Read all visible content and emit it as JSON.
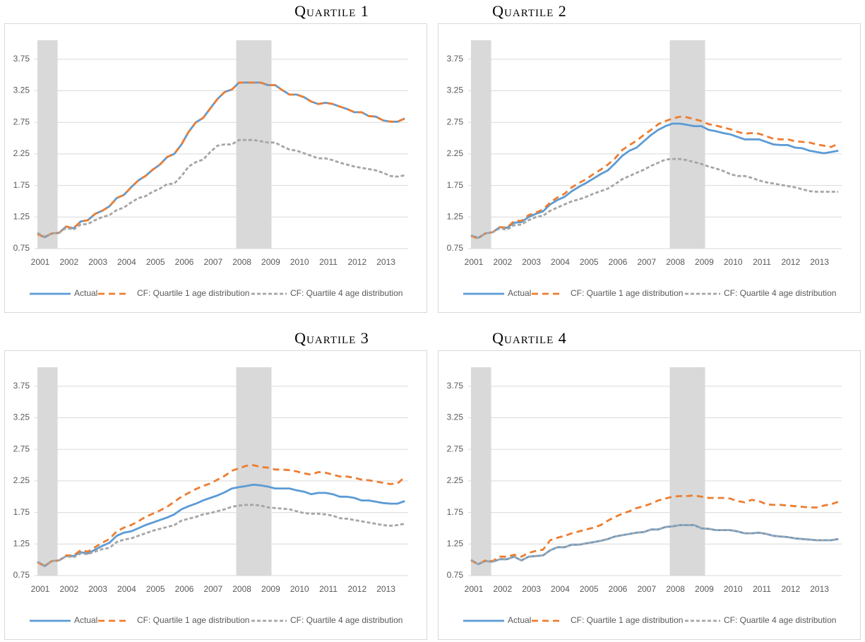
{
  "chart_data": [
    {
      "type": "line",
      "title": "Quartile 1",
      "categories": [
        "2001",
        null,
        null,
        null,
        "2002",
        null,
        null,
        null,
        "2003",
        null,
        null,
        null,
        "2004",
        null,
        null,
        null,
        "2005",
        null,
        null,
        null,
        "2006",
        null,
        null,
        null,
        "2007",
        null,
        null,
        null,
        "2008",
        null,
        null,
        null,
        "2009",
        null,
        null,
        null,
        "2010",
        null,
        null,
        null,
        "2011",
        null,
        null,
        null,
        "2012",
        null,
        null,
        null,
        "2013",
        null,
        null,
        null
      ],
      "series": [
        {
          "name": "Actual",
          "color": "#5b9bd5",
          "dash": "solid",
          "values": [
            0.98,
            0.93,
            0.99,
            1.0,
            1.1,
            1.07,
            1.18,
            1.2,
            1.3,
            1.35,
            1.42,
            1.55,
            1.6,
            1.72,
            1.83,
            1.9,
            2.0,
            2.08,
            2.2,
            2.25,
            2.4,
            2.6,
            2.75,
            2.82,
            2.97,
            3.12,
            3.23,
            3.27,
            3.38,
            3.38,
            3.38,
            3.38,
            3.34,
            3.34,
            3.26,
            3.19,
            3.19,
            3.15,
            3.08,
            3.04,
            3.06,
            3.04,
            3.0,
            2.96,
            2.91,
            2.91,
            2.85,
            2.84,
            2.78,
            2.76,
            2.76,
            2.81
          ]
        },
        {
          "name": "CF: Quartile 1 age distribution",
          "color": "#ed7d31",
          "dash": "long",
          "values": [
            0.98,
            0.93,
            0.99,
            1.0,
            1.1,
            1.07,
            1.18,
            1.2,
            1.3,
            1.35,
            1.42,
            1.55,
            1.6,
            1.72,
            1.83,
            1.9,
            2.0,
            2.08,
            2.2,
            2.25,
            2.4,
            2.6,
            2.75,
            2.82,
            2.97,
            3.12,
            3.23,
            3.27,
            3.38,
            3.38,
            3.38,
            3.38,
            3.34,
            3.34,
            3.26,
            3.19,
            3.19,
            3.15,
            3.08,
            3.04,
            3.06,
            3.04,
            3.0,
            2.96,
            2.91,
            2.91,
            2.85,
            2.84,
            2.78,
            2.76,
            2.76,
            2.81
          ]
        },
        {
          "name": "CF: Quartile 4 age distribution",
          "color": "#a5a5a5",
          "dash": "short",
          "values": [
            1.0,
            0.94,
            0.99,
            1.0,
            1.08,
            1.05,
            1.13,
            1.14,
            1.2,
            1.25,
            1.28,
            1.36,
            1.4,
            1.48,
            1.55,
            1.58,
            1.65,
            1.7,
            1.77,
            1.78,
            1.9,
            2.05,
            2.12,
            2.16,
            2.28,
            2.38,
            2.4,
            2.4,
            2.47,
            2.47,
            2.47,
            2.45,
            2.43,
            2.43,
            2.37,
            2.32,
            2.3,
            2.26,
            2.22,
            2.18,
            2.18,
            2.15,
            2.11,
            2.08,
            2.05,
            2.03,
            2.01,
            1.99,
            1.95,
            1.9,
            1.89,
            1.91
          ]
        }
      ],
      "shaded": [
        [
          0,
          2.8
        ],
        [
          27.6,
          32.5
        ]
      ],
      "shade_color": "#d9d9d9",
      "ylim": [
        0.75,
        4.05
      ],
      "yticks": [
        0.75,
        1.25,
        1.75,
        2.25,
        2.75,
        3.25,
        3.75
      ],
      "grid": true
    },
    {
      "type": "line",
      "title": "Quartile 2",
      "categories": [
        "2001",
        null,
        null,
        null,
        "2002",
        null,
        null,
        null,
        "2003",
        null,
        null,
        null,
        "2004",
        null,
        null,
        null,
        "2005",
        null,
        null,
        null,
        "2006",
        null,
        null,
        null,
        "2007",
        null,
        null,
        null,
        "2008",
        null,
        null,
        null,
        "2009",
        null,
        null,
        null,
        "2010",
        null,
        null,
        null,
        "2011",
        null,
        null,
        null,
        "2012",
        null,
        null,
        null,
        "2013",
        null,
        null,
        null
      ],
      "series": [
        {
          "name": "Actual",
          "color": "#5b9bd5",
          "dash": "solid",
          "values": [
            0.96,
            0.92,
            0.99,
            1.01,
            1.09,
            1.08,
            1.16,
            1.17,
            1.25,
            1.3,
            1.34,
            1.45,
            1.52,
            1.57,
            1.66,
            1.73,
            1.79,
            1.86,
            1.93,
            1.99,
            2.1,
            2.22,
            2.3,
            2.35,
            2.45,
            2.55,
            2.63,
            2.69,
            2.73,
            2.73,
            2.71,
            2.69,
            2.69,
            2.63,
            2.61,
            2.58,
            2.56,
            2.52,
            2.48,
            2.48,
            2.48,
            2.44,
            2.4,
            2.39,
            2.39,
            2.35,
            2.34,
            2.3,
            2.28,
            2.26,
            2.28,
            2.3
          ]
        },
        {
          "name": "CF: Quartile 1 age distribution",
          "color": "#ed7d31",
          "dash": "long",
          "values": [
            0.95,
            0.91,
            0.99,
            1.01,
            1.09,
            1.08,
            1.19,
            1.19,
            1.28,
            1.32,
            1.37,
            1.48,
            1.56,
            1.62,
            1.72,
            1.79,
            1.85,
            1.93,
            2.0,
            2.08,
            2.18,
            2.31,
            2.39,
            2.46,
            2.55,
            2.63,
            2.72,
            2.77,
            2.81,
            2.84,
            2.83,
            2.8,
            2.77,
            2.72,
            2.7,
            2.67,
            2.64,
            2.6,
            2.57,
            2.58,
            2.57,
            2.53,
            2.49,
            2.48,
            2.48,
            2.45,
            2.44,
            2.43,
            2.4,
            2.38,
            2.36,
            2.41
          ]
        },
        {
          "name": "CF: Quartile 4 age distribution",
          "color": "#a5a5a5",
          "dash": "short",
          "values": [
            0.96,
            0.92,
            0.99,
            1.01,
            1.07,
            1.05,
            1.12,
            1.13,
            1.2,
            1.25,
            1.27,
            1.35,
            1.4,
            1.45,
            1.5,
            1.53,
            1.57,
            1.62,
            1.66,
            1.7,
            1.77,
            1.85,
            1.9,
            1.95,
            2.0,
            2.06,
            2.11,
            2.16,
            2.17,
            2.17,
            2.15,
            2.12,
            2.09,
            2.05,
            2.02,
            1.98,
            1.93,
            1.9,
            1.9,
            1.87,
            1.83,
            1.8,
            1.78,
            1.76,
            1.74,
            1.72,
            1.69,
            1.66,
            1.65,
            1.65,
            1.65,
            1.65
          ]
        }
      ],
      "shaded": [
        [
          0,
          2.8
        ],
        [
          27.6,
          32.5
        ]
      ],
      "shade_color": "#d9d9d9",
      "ylim": [
        0.75,
        4.05
      ],
      "yticks": [
        0.75,
        1.25,
        1.75,
        2.25,
        2.75,
        3.25,
        3.75
      ],
      "grid": true
    },
    {
      "type": "line",
      "title": "Quartile 3",
      "categories": [
        "2001",
        null,
        null,
        null,
        "2002",
        null,
        null,
        null,
        "2003",
        null,
        null,
        null,
        "2004",
        null,
        null,
        null,
        "2005",
        null,
        null,
        null,
        "2006",
        null,
        null,
        null,
        "2007",
        null,
        null,
        null,
        "2008",
        null,
        null,
        null,
        "2009",
        null,
        null,
        null,
        "2010",
        null,
        null,
        null,
        "2011",
        null,
        null,
        null,
        "2012",
        null,
        null,
        null,
        "2013",
        null,
        null,
        null
      ],
      "series": [
        {
          "name": "Actual",
          "color": "#5b9bd5",
          "dash": "solid",
          "values": [
            0.97,
            0.9,
            0.98,
            0.99,
            1.06,
            1.06,
            1.12,
            1.1,
            1.16,
            1.22,
            1.27,
            1.38,
            1.43,
            1.45,
            1.5,
            1.55,
            1.59,
            1.63,
            1.67,
            1.72,
            1.8,
            1.85,
            1.89,
            1.94,
            1.98,
            2.02,
            2.07,
            2.13,
            2.15,
            2.17,
            2.19,
            2.18,
            2.16,
            2.13,
            2.13,
            2.13,
            2.1,
            2.08,
            2.04,
            2.06,
            2.06,
            2.04,
            2.0,
            2.0,
            1.98,
            1.94,
            1.94,
            1.92,
            1.9,
            1.89,
            1.89,
            1.93
          ]
        },
        {
          "name": "CF: Quartile 1 age distribution",
          "color": "#ed7d31",
          "dash": "long",
          "values": [
            0.96,
            0.9,
            0.98,
            0.99,
            1.07,
            1.07,
            1.15,
            1.13,
            1.2,
            1.27,
            1.33,
            1.45,
            1.51,
            1.55,
            1.61,
            1.68,
            1.73,
            1.78,
            1.84,
            1.92,
            2.0,
            2.06,
            2.12,
            2.17,
            2.21,
            2.27,
            2.33,
            2.41,
            2.45,
            2.49,
            2.5,
            2.47,
            2.46,
            2.43,
            2.43,
            2.42,
            2.4,
            2.37,
            2.35,
            2.39,
            2.38,
            2.35,
            2.32,
            2.32,
            2.3,
            2.27,
            2.26,
            2.24,
            2.22,
            2.2,
            2.21,
            2.31
          ]
        },
        {
          "name": "CF: Quartile 4 age distribution",
          "color": "#a5a5a5",
          "dash": "short",
          "values": [
            0.97,
            0.91,
            0.98,
            0.99,
            1.06,
            1.04,
            1.1,
            1.09,
            1.13,
            1.17,
            1.19,
            1.28,
            1.32,
            1.34,
            1.38,
            1.42,
            1.46,
            1.49,
            1.52,
            1.55,
            1.62,
            1.65,
            1.68,
            1.72,
            1.74,
            1.77,
            1.8,
            1.84,
            1.86,
            1.87,
            1.87,
            1.86,
            1.83,
            1.82,
            1.81,
            1.8,
            1.77,
            1.74,
            1.73,
            1.73,
            1.72,
            1.7,
            1.66,
            1.65,
            1.63,
            1.61,
            1.59,
            1.57,
            1.55,
            1.54,
            1.55,
            1.57
          ]
        }
      ],
      "shaded": [
        [
          0,
          2.8
        ],
        [
          27.6,
          32.5
        ]
      ],
      "shade_color": "#d9d9d9",
      "ylim": [
        0.75,
        4.05
      ],
      "yticks": [
        0.75,
        1.25,
        1.75,
        2.25,
        2.75,
        3.25,
        3.75
      ],
      "grid": true
    },
    {
      "type": "line",
      "title": "Quartile 4",
      "categories": [
        "2001",
        null,
        null,
        null,
        "2002",
        null,
        null,
        null,
        "2003",
        null,
        null,
        null,
        "2004",
        null,
        null,
        null,
        "2005",
        null,
        null,
        null,
        "2006",
        null,
        null,
        null,
        "2007",
        null,
        null,
        null,
        "2008",
        null,
        null,
        null,
        "2009",
        null,
        null,
        null,
        "2010",
        null,
        null,
        null,
        "2011",
        null,
        null,
        null,
        "2012",
        null,
        null,
        null,
        "2013",
        null,
        null,
        null
      ],
      "series": [
        {
          "name": "Actual",
          "color": "#5b9bd5",
          "dash": "solid",
          "values": [
            1.0,
            0.93,
            0.98,
            0.97,
            1.01,
            1.01,
            1.05,
            0.99,
            1.05,
            1.06,
            1.07,
            1.15,
            1.2,
            1.2,
            1.24,
            1.24,
            1.26,
            1.28,
            1.3,
            1.33,
            1.37,
            1.39,
            1.41,
            1.43,
            1.44,
            1.48,
            1.48,
            1.52,
            1.53,
            1.55,
            1.55,
            1.55,
            1.5,
            1.49,
            1.47,
            1.47,
            1.47,
            1.45,
            1.42,
            1.42,
            1.43,
            1.41,
            1.38,
            1.37,
            1.36,
            1.34,
            1.33,
            1.32,
            1.31,
            1.31,
            1.31,
            1.33
          ]
        },
        {
          "name": "CF: Quartile 1 age distribution",
          "color": "#ed7d31",
          "dash": "long",
          "values": [
            0.99,
            0.93,
            0.99,
            0.98,
            1.05,
            1.05,
            1.08,
            1.05,
            1.11,
            1.14,
            1.16,
            1.31,
            1.35,
            1.38,
            1.42,
            1.45,
            1.48,
            1.51,
            1.55,
            1.62,
            1.68,
            1.73,
            1.77,
            1.82,
            1.85,
            1.89,
            1.94,
            1.97,
            2.0,
            2.01,
            2.01,
            2.02,
            2.0,
            1.98,
            1.98,
            1.98,
            1.97,
            1.93,
            1.91,
            1.95,
            1.93,
            1.88,
            1.87,
            1.87,
            1.86,
            1.85,
            1.84,
            1.83,
            1.83,
            1.86,
            1.88,
            1.92
          ]
        },
        {
          "name": "CF: Quartile 4 age distribution",
          "color": "#a5a5a5",
          "dash": "short",
          "values": [
            1.0,
            0.93,
            0.98,
            0.97,
            1.01,
            1.01,
            1.05,
            0.99,
            1.05,
            1.06,
            1.07,
            1.15,
            1.2,
            1.2,
            1.24,
            1.24,
            1.26,
            1.28,
            1.3,
            1.33,
            1.37,
            1.39,
            1.41,
            1.43,
            1.44,
            1.48,
            1.48,
            1.52,
            1.53,
            1.55,
            1.55,
            1.55,
            1.5,
            1.49,
            1.47,
            1.47,
            1.47,
            1.45,
            1.42,
            1.42,
            1.43,
            1.41,
            1.38,
            1.37,
            1.36,
            1.34,
            1.33,
            1.32,
            1.31,
            1.31,
            1.31,
            1.33
          ]
        }
      ],
      "shaded": [
        [
          0,
          2.8
        ],
        [
          27.6,
          32.5
        ]
      ],
      "shade_color": "#d9d9d9",
      "ylim": [
        0.75,
        4.05
      ],
      "yticks": [
        0.75,
        1.25,
        1.75,
        2.25,
        2.75,
        3.25,
        3.75
      ],
      "grid": true
    }
  ]
}
